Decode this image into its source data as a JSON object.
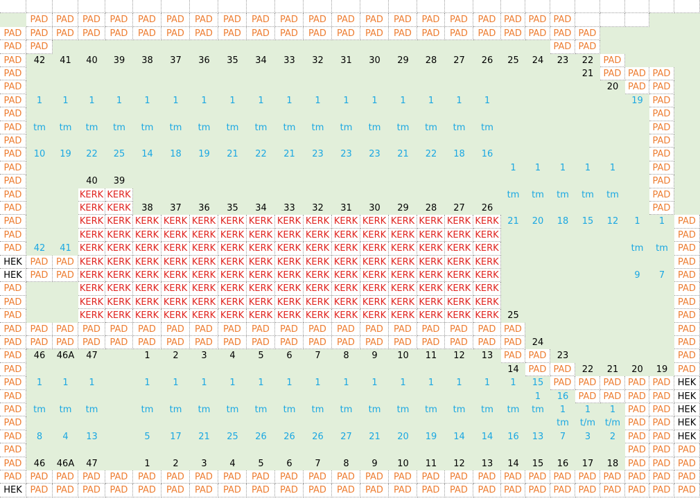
{
  "grid": {
    "rows": [
      [
        "_",
        "_",
        "_",
        "_",
        "_",
        "_",
        "_",
        "_",
        "_",
        "_",
        "_",
        "_",
        "_",
        "_",
        "_",
        "_",
        "_",
        "_",
        "_",
        "_",
        "_",
        "_",
        "_",
        "_"
      ],
      [
        "",
        "PAD",
        "PAD",
        "PAD",
        "PAD",
        "PAD",
        "PAD",
        "PAD",
        "PAD",
        "PAD",
        "PAD",
        "PAD",
        "PAD",
        "PAD",
        "PAD",
        "PAD",
        "PAD",
        "PAD",
        "PAD",
        "PAD",
        "PAD",
        "_",
        "_",
        "_"
      ],
      [
        "PAD",
        "PAD",
        "PAD",
        "PAD",
        "PAD",
        "PAD",
        "PAD",
        "PAD",
        "PAD",
        "PAD",
        "PAD",
        "PAD",
        "PAD",
        "PAD",
        "PAD",
        "PAD",
        "PAD",
        "PAD",
        "PAD",
        "PAD",
        "PAD",
        "PAD",
        "",
        ""
      ],
      [
        "PAD",
        "PAD",
        "",
        "",
        "",
        "",
        "",
        "",
        "",
        "",
        "",
        "",
        "",
        "",
        "",
        "",
        "",
        "",
        "",
        "",
        "PAD",
        "PAD",
        "",
        ""
      ],
      [
        "PAD",
        "42",
        "41",
        "40",
        "39",
        "38",
        "37",
        "36",
        "35",
        "34",
        "33",
        "32",
        "31",
        "30",
        "29",
        "28",
        "27",
        "26",
        "25",
        "24",
        "23",
        "22",
        "PAD",
        ""
      ],
      [
        "PAD",
        "",
        "",
        "",
        "",
        "",
        "",
        "",
        "",
        "",
        "",
        "",
        "",
        "",
        "",
        "",
        "",
        "",
        "",
        "",
        "",
        "21",
        "PAD",
        "PAD",
        "PAD"
      ],
      [
        "PAD",
        "",
        "",
        "",
        "",
        "",
        "",
        "",
        "",
        "",
        "",
        "",
        "",
        "",
        "",
        "",
        "",
        "",
        "",
        "",
        "",
        "",
        "20",
        "PAD",
        "PAD"
      ],
      [
        "PAD",
        "1",
        "1",
        "1",
        "1",
        "1",
        "1",
        "1",
        "1",
        "1",
        "1",
        "1",
        "1",
        "1",
        "1",
        "1",
        "1",
        "1",
        "",
        "",
        "",
        "",
        "",
        "19",
        "PAD"
      ],
      [
        "PAD",
        "",
        "",
        "",
        "",
        "",
        "",
        "",
        "",
        "",
        "",
        "",
        "",
        "",
        "",
        "",
        "",
        "",
        "",
        "",
        "",
        "",
        "",
        "",
        "PAD"
      ],
      [
        "PAD",
        "tm",
        "tm",
        "tm",
        "tm",
        "tm",
        "tm",
        "tm",
        "tm",
        "tm",
        "tm",
        "tm",
        "tm",
        "tm",
        "tm",
        "tm",
        "tm",
        "tm",
        "",
        "",
        "",
        "",
        "",
        "",
        "PAD"
      ],
      [
        "PAD",
        "",
        "",
        "",
        "",
        "",
        "",
        "",
        "",
        "",
        "",
        "",
        "",
        "",
        "",
        "",
        "",
        "",
        "",
        "",
        "",
        "",
        "",
        "",
        "PAD"
      ],
      [
        "PAD",
        "10",
        "19",
        "22",
        "25",
        "14",
        "18",
        "19",
        "21",
        "22",
        "21",
        "23",
        "23",
        "23",
        "21",
        "22",
        "18",
        "16",
        "",
        "",
        "",
        "",
        "",
        "",
        "PAD"
      ],
      [
        "PAD",
        "",
        "",
        "",
        "",
        "",
        "",
        "",
        "",
        "",
        "",
        "",
        "",
        "",
        "",
        "",
        "",
        "",
        "1",
        "1",
        "1",
        "1",
        "1",
        "",
        "PAD"
      ],
      [
        "PAD",
        "",
        "",
        "40",
        "39",
        "",
        "",
        "",
        "",
        "",
        "",
        "",
        "",
        "",
        "",
        "",
        "",
        "",
        "",
        "",
        "",
        "",
        "",
        "",
        "PAD"
      ],
      [
        "PAD",
        "",
        "",
        "KERK",
        "KERK",
        "",
        "",
        "",
        "",
        "",
        "",
        "",
        "",
        "",
        "",
        "",
        "",
        "",
        "tm",
        "tm",
        "tm",
        "tm",
        "tm",
        "",
        "PAD"
      ],
      [
        "PAD",
        "",
        "",
        "KERK",
        "KERK",
        "38",
        "37",
        "36",
        "35",
        "34",
        "33",
        "32",
        "31",
        "30",
        "29",
        "28",
        "27",
        "26",
        "",
        "",
        "",
        "",
        "",
        "",
        "PAD"
      ],
      [
        "PAD",
        "",
        "",
        "KERK",
        "KERK",
        "KERK",
        "KERK",
        "KERK",
        "KERK",
        "KERK",
        "KERK",
        "KERK",
        "KERK",
        "KERK",
        "KERK",
        "KERK",
        "KERK",
        "KERK",
        "21",
        "20",
        "18",
        "15",
        "12",
        "1",
        "1",
        "PAD"
      ],
      [
        "PAD",
        "",
        "",
        "KERK",
        "KERK",
        "KERK",
        "KERK",
        "KERK",
        "KERK",
        "KERK",
        "KERK",
        "KERK",
        "KERK",
        "KERK",
        "KERK",
        "KERK",
        "KERK",
        "KERK",
        "",
        "",
        "",
        "",
        "",
        "",
        "",
        "PAD"
      ],
      [
        "PAD",
        "42",
        "41",
        "KERK",
        "KERK",
        "KERK",
        "KERK",
        "KERK",
        "KERK",
        "KERK",
        "KERK",
        "KERK",
        "KERK",
        "KERK",
        "KERK",
        "KERK",
        "KERK",
        "KERK",
        "",
        "",
        "",
        "",
        "",
        "tm",
        "tm",
        "PAD"
      ],
      [
        "HEK",
        "PAD",
        "PAD",
        "KERK",
        "KERK",
        "KERK",
        "KERK",
        "KERK",
        "KERK",
        "KERK",
        "KERK",
        "KERK",
        "KERK",
        "KERK",
        "KERK",
        "KERK",
        "KERK",
        "KERK",
        "",
        "",
        "",
        "",
        "",
        "",
        "",
        "PAD"
      ],
      [
        "HEK",
        "PAD",
        "PAD",
        "KERK",
        "KERK",
        "KERK",
        "KERK",
        "KERK",
        "KERK",
        "KERK",
        "KERK",
        "KERK",
        "KERK",
        "KERK",
        "KERK",
        "KERK",
        "KERK",
        "KERK",
        "",
        "",
        "",
        "",
        "",
        "9",
        "7",
        "PAD"
      ],
      [
        "PAD",
        "",
        "",
        "KERK",
        "KERK",
        "KERK",
        "KERK",
        "KERK",
        "KERK",
        "KERK",
        "KERK",
        "KERK",
        "KERK",
        "KERK",
        "KERK",
        "KERK",
        "KERK",
        "KERK",
        "",
        "",
        "",
        "",
        "",
        "",
        "",
        "PAD"
      ],
      [
        "PAD",
        "",
        "",
        "KERK",
        "KERK",
        "KERK",
        "KERK",
        "KERK",
        "KERK",
        "KERK",
        "KERK",
        "KERK",
        "KERK",
        "KERK",
        "KERK",
        "KERK",
        "KERK",
        "KERK",
        "",
        "",
        "",
        "",
        "",
        "",
        "",
        "PAD"
      ],
      [
        "PAD",
        "",
        "",
        "KERK",
        "KERK",
        "KERK",
        "KERK",
        "KERK",
        "KERK",
        "KERK",
        "KERK",
        "KERK",
        "KERK",
        "KERK",
        "KERK",
        "KERK",
        "KERK",
        "KERK",
        "25",
        "",
        "",
        "",
        "",
        "",
        "",
        "PAD"
      ],
      [
        "PAD",
        "PAD",
        "PAD",
        "PAD",
        "PAD",
        "PAD",
        "PAD",
        "PAD",
        "PAD",
        "PAD",
        "PAD",
        "PAD",
        "PAD",
        "PAD",
        "PAD",
        "PAD",
        "PAD",
        "PAD",
        "PAD",
        "",
        "",
        "",
        "",
        "",
        "",
        "PAD"
      ],
      [
        "PAD",
        "PAD",
        "PAD",
        "PAD",
        "PAD",
        "PAD",
        "PAD",
        "PAD",
        "PAD",
        "PAD",
        "PAD",
        "PAD",
        "PAD",
        "PAD",
        "PAD",
        "PAD",
        "PAD",
        "PAD",
        "PAD",
        "24",
        "",
        "",
        "",
        "",
        "",
        "PAD"
      ],
      [
        "PAD",
        "46",
        "46A",
        "47",
        "",
        "1",
        "2",
        "3",
        "4",
        "5",
        "6",
        "7",
        "8",
        "9",
        "10",
        "11",
        "12",
        "13",
        "PAD",
        "PAD",
        "23",
        "",
        "",
        "",
        "",
        "PAD"
      ],
      [
        "PAD",
        "",
        "",
        "",
        "",
        "",
        "",
        "",
        "",
        "",
        "",
        "",
        "",
        "",
        "",
        "",
        "",
        "",
        "14",
        "PAD",
        "PAD",
        "22",
        "21",
        "20",
        "19",
        "PAD"
      ],
      [
        "PAD",
        "1",
        "1",
        "1",
        "",
        "1",
        "1",
        "1",
        "1",
        "1",
        "1",
        "1",
        "1",
        "1",
        "1",
        "1",
        "1",
        "1",
        "1",
        "15",
        "PAD",
        "PAD",
        "PAD",
        "PAD",
        "PAD",
        "HEK"
      ],
      [
        "PAD",
        "",
        "",
        "",
        "",
        "",
        "",
        "",
        "",
        "",
        "",
        "",
        "",
        "",
        "",
        "",
        "",
        "",
        "",
        "1",
        "16",
        "PAD",
        "PAD",
        "PAD",
        "PAD",
        "HEK"
      ],
      [
        "PAD",
        "tm",
        "tm",
        "tm",
        "",
        "tm",
        "tm",
        "tm",
        "tm",
        "tm",
        "tm",
        "tm",
        "tm",
        "tm",
        "tm",
        "tm",
        "tm",
        "tm",
        "tm",
        "tm",
        "1",
        "1",
        "1",
        "PAD",
        "PAD",
        "HEK"
      ],
      [
        "PAD",
        "",
        "",
        "",
        "",
        "",
        "",
        "",
        "",
        "",
        "",
        "",
        "",
        "",
        "",
        "",
        "",
        "",
        "",
        "",
        "tm",
        "t/m",
        "t/m",
        "PAD",
        "PAD",
        "HEK"
      ],
      [
        "PAD",
        "8",
        "4",
        "13",
        "",
        "5",
        "17",
        "21",
        "25",
        "26",
        "26",
        "26",
        "27",
        "21",
        "20",
        "19",
        "14",
        "14",
        "16",
        "13",
        "7",
        "3",
        "2",
        "PAD",
        "PAD",
        "HEK"
      ],
      [
        "PAD",
        "",
        "",
        "",
        "",
        "",
        "",
        "",
        "",
        "",
        "",
        "",
        "",
        "",
        "",
        "",
        "",
        "",
        "",
        "",
        "",
        "",
        "",
        "PAD",
        "PAD",
        "PAD"
      ],
      [
        "PAD",
        "46",
        "46A",
        "47",
        "",
        "1",
        "2",
        "3",
        "4",
        "5",
        "6",
        "7",
        "8",
        "9",
        "10",
        "11",
        "12",
        "13",
        "14",
        "15",
        "16",
        "17",
        "18",
        "PAD",
        "PAD",
        "PAD"
      ],
      [
        "PAD",
        "PAD",
        "PAD",
        "PAD",
        "PAD",
        "PAD",
        "PAD",
        "PAD",
        "PAD",
        "PAD",
        "PAD",
        "PAD",
        "PAD",
        "PAD",
        "PAD",
        "PAD",
        "PAD",
        "PAD",
        "PAD",
        "PAD",
        "PAD",
        "PAD",
        "PAD",
        "PAD",
        "PAD",
        "PAD"
      ],
      [
        "HEK",
        "PAD",
        "PAD",
        "PAD",
        "PAD",
        "PAD",
        "PAD",
        "PAD",
        "PAD",
        "PAD",
        "PAD",
        "PAD",
        "PAD",
        "PAD",
        "PAD",
        "PAD",
        "PAD",
        "PAD",
        "PAD",
        "PAD",
        "PAD",
        "PAD",
        "PAD",
        "PAD",
        "PAD",
        "PAD"
      ]
    ],
    "blue_text_rows": [
      7,
      9,
      11,
      12,
      14,
      16,
      18,
      20,
      28,
      29,
      30,
      31,
      32
    ],
    "black_numeric_rows": [
      4,
      5,
      6,
      13,
      15,
      23,
      25,
      26,
      27,
      34
    ],
    "colors": {
      "pad": "#ed7d31",
      "kerk": "#e0241f",
      "blue": "#1aa7e2",
      "green_bg": "#e2efda",
      "grid": "#9a9a9a"
    }
  }
}
